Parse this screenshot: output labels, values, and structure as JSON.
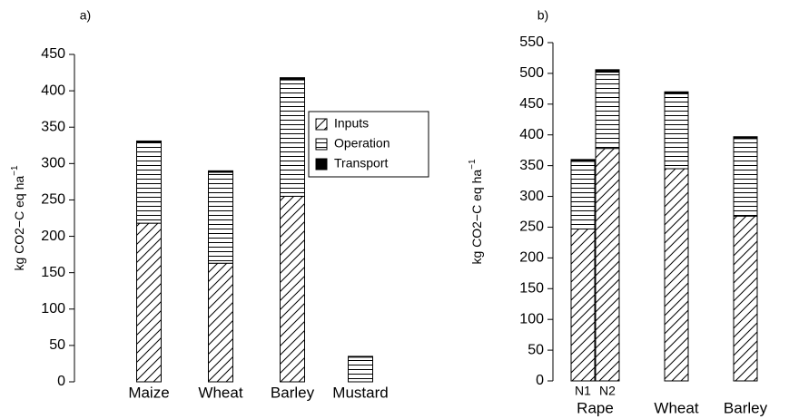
{
  "charts": [
    {
      "type": "stacked-bar",
      "panel": "a)",
      "ylabel": "kg CO2−C eq ha",
      "ylabel_sup": "−1",
      "categories": [
        "Maize",
        "Wheat",
        "Barley",
        "Mustard"
      ],
      "series": [
        {
          "name": "Inputs",
          "color": "#000000",
          "pattern": "diagonal",
          "values": [
            218,
            163,
            255,
            0
          ]
        },
        {
          "name": "Operation",
          "color": "#000000",
          "pattern": "horizontal",
          "values": [
            111,
            125,
            160,
            34
          ]
        },
        {
          "name": "Transport",
          "color": "#000000",
          "pattern": "solid",
          "values": [
            2,
            2,
            3,
            1
          ]
        }
      ],
      "ylim": [
        0,
        450
      ],
      "yticks": [
        0,
        50,
        100,
        150,
        200,
        250,
        300,
        350,
        400,
        450
      ],
      "legend": true
    },
    {
      "type": "stacked-bar",
      "panel": "b)",
      "ylabel": "kg CO2−C eq ha",
      "ylabel_sup": "−1",
      "groups": [
        {
          "name": "Rape",
          "categories": [
            "N1",
            "N2"
          ]
        },
        {
          "name": "Wheat",
          "categories": [
            null
          ]
        },
        {
          "name": "Barley",
          "categories": [
            null
          ]
        }
      ],
      "series": [
        {
          "name": "Inputs",
          "color": "#000000",
          "pattern": "diagonal",
          "values": [
            247,
            378,
            345,
            268
          ]
        },
        {
          "name": "Operation",
          "color": "#000000",
          "pattern": "horizontal",
          "values": [
            110,
            124,
            122,
            126
          ]
        },
        {
          "name": "Transport",
          "color": "#000000",
          "pattern": "solid",
          "values": [
            3,
            4,
            3,
            3
          ]
        }
      ],
      "ylim": [
        0,
        550
      ],
      "yticks": [
        0,
        50,
        100,
        150,
        200,
        250,
        300,
        350,
        400,
        450,
        500,
        550
      ],
      "legend": false
    }
  ]
}
